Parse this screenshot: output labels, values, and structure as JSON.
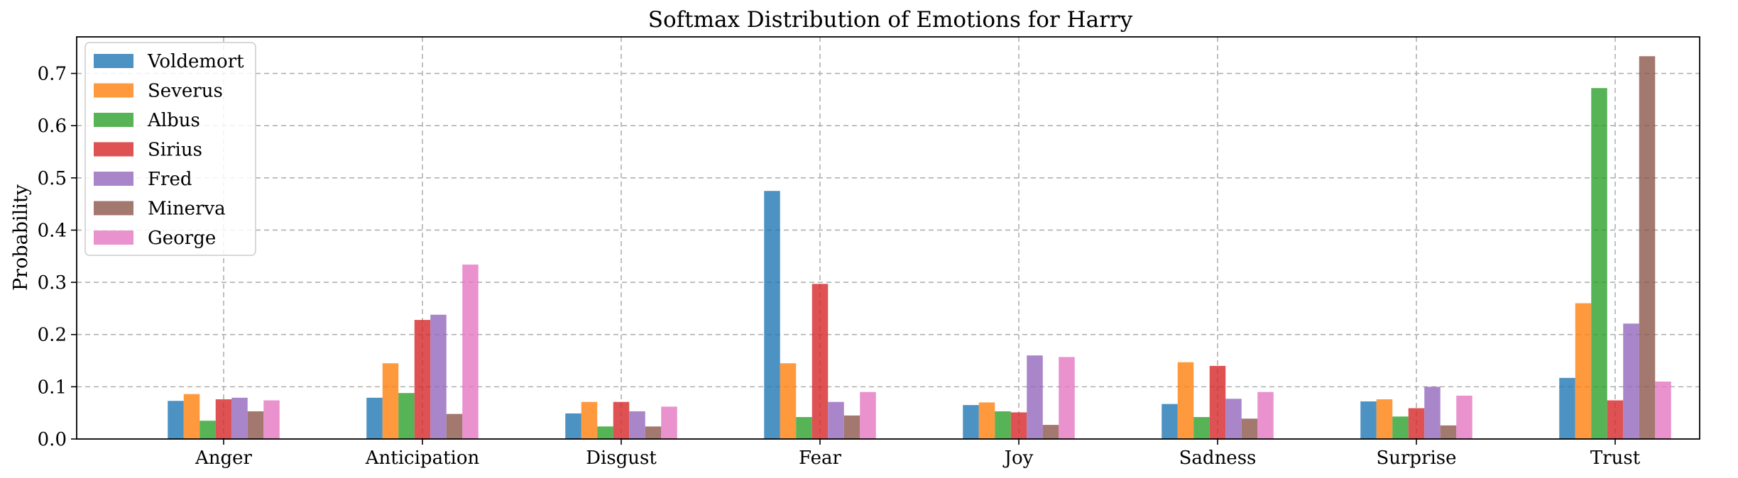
{
  "chart_data": {
    "type": "bar",
    "title": "Softmax Distribution of Emotions for Harry",
    "xlabel": "",
    "ylabel": "Probability",
    "ylim": [
      0,
      0.77
    ],
    "yticks": [
      "0.0",
      "0.1",
      "0.2",
      "0.3",
      "0.4",
      "0.5",
      "0.6",
      "0.7"
    ],
    "grid": true,
    "legend_position": "top-left",
    "categories": [
      "Anger",
      "Anticipation",
      "Disgust",
      "Fear",
      "Joy",
      "Sadness",
      "Surprise",
      "Trust"
    ],
    "series": [
      {
        "name": "Voldemort",
        "color": "#1f77b4",
        "values": [
          0.073,
          0.079,
          0.049,
          0.475,
          0.065,
          0.067,
          0.072,
          0.117
        ]
      },
      {
        "name": "Severus",
        "color": "#ff7f0e",
        "values": [
          0.086,
          0.145,
          0.071,
          0.145,
          0.07,
          0.147,
          0.076,
          0.26
        ]
      },
      {
        "name": "Albus",
        "color": "#2ca02c",
        "values": [
          0.035,
          0.088,
          0.024,
          0.042,
          0.053,
          0.042,
          0.043,
          0.672
        ]
      },
      {
        "name": "Sirius",
        "color": "#d62728",
        "values": [
          0.076,
          0.228,
          0.071,
          0.297,
          0.051,
          0.14,
          0.059,
          0.074
        ]
      },
      {
        "name": "Fred",
        "color": "#9467bd",
        "values": [
          0.079,
          0.238,
          0.053,
          0.071,
          0.16,
          0.077,
          0.1,
          0.221
        ]
      },
      {
        "name": "Minerva",
        "color": "#8c564b",
        "values": [
          0.053,
          0.048,
          0.024,
          0.045,
          0.027,
          0.039,
          0.026,
          0.733
        ]
      },
      {
        "name": "George",
        "color": "#e377c2",
        "values": [
          0.074,
          0.334,
          0.062,
          0.09,
          0.157,
          0.09,
          0.083,
          0.11
        ]
      }
    ]
  }
}
